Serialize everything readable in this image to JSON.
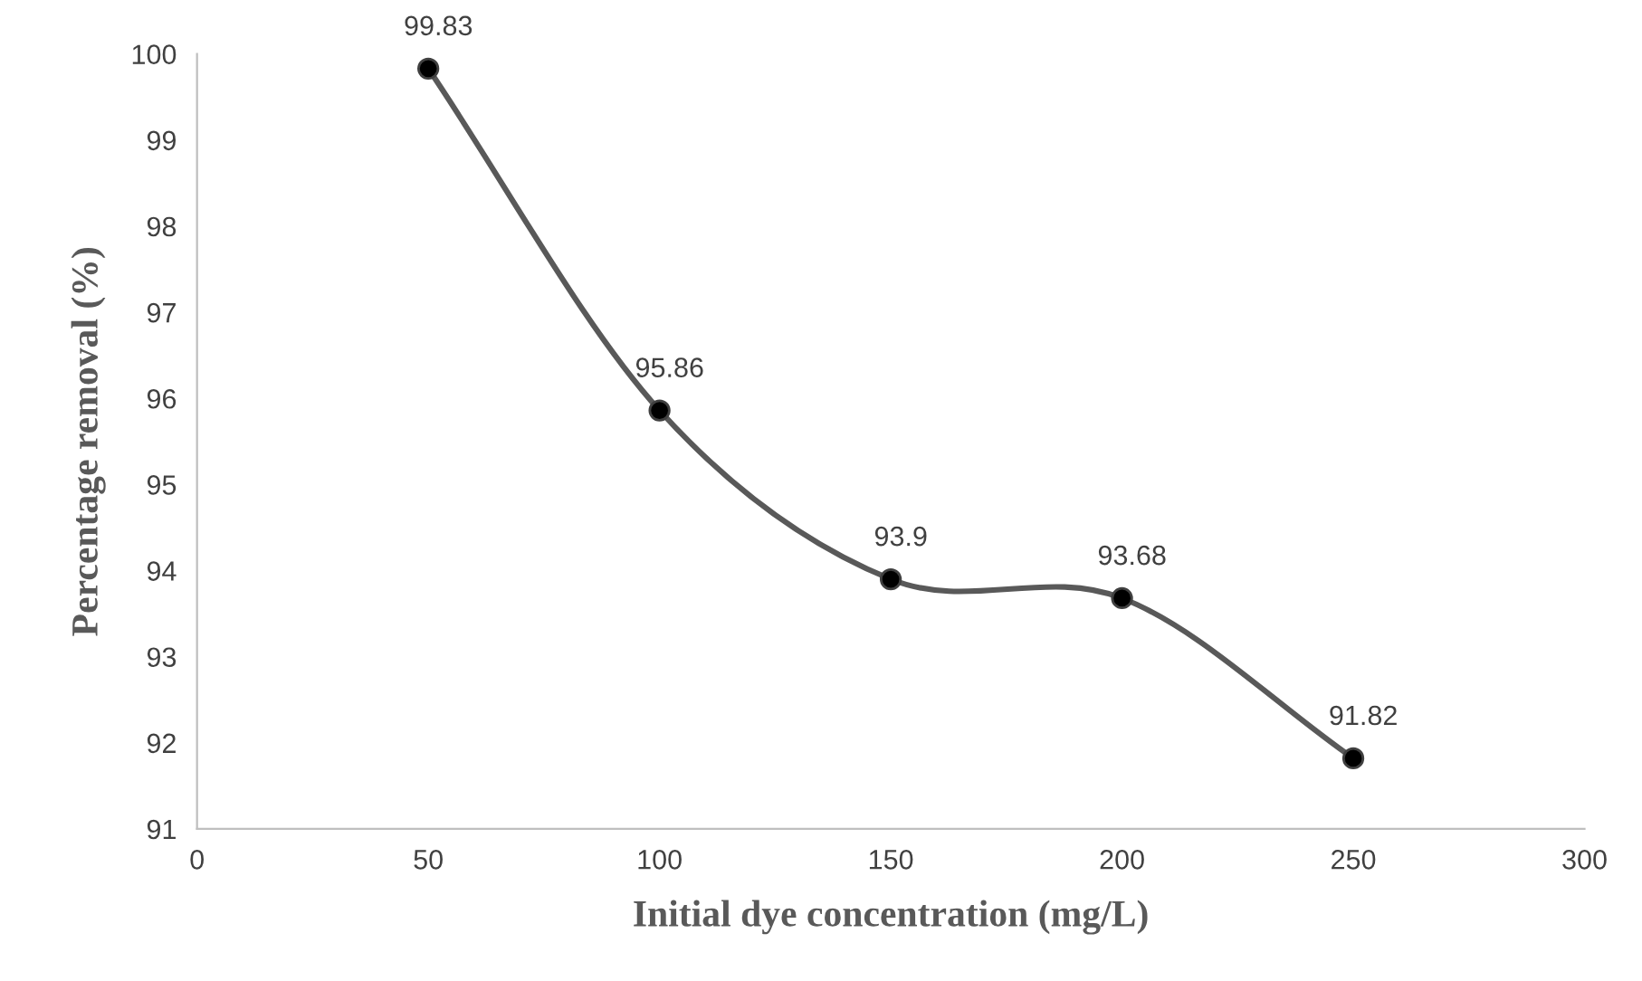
{
  "chart_data": {
    "type": "line",
    "xlabel": "Initial dye concentration (mg/L)",
    "ylabel": "Percentage removal (%)",
    "x": [
      50,
      100,
      150,
      200,
      250
    ],
    "series": [
      {
        "color": "#595959",
        "values": [
          99.83,
          95.86,
          93.9,
          93.68,
          91.82
        ]
      }
    ],
    "xlim": [
      0,
      300
    ],
    "xticks": [
      0,
      50,
      100,
      150,
      200,
      250,
      300
    ],
    "ylim": [
      91,
      100
    ],
    "yticks": [
      91,
      92,
      93,
      94,
      95,
      96,
      97,
      98,
      99,
      100
    ],
    "marker": "circle",
    "line_style": "solid",
    "data_labels": true,
    "grid": false,
    "legend": false
  }
}
